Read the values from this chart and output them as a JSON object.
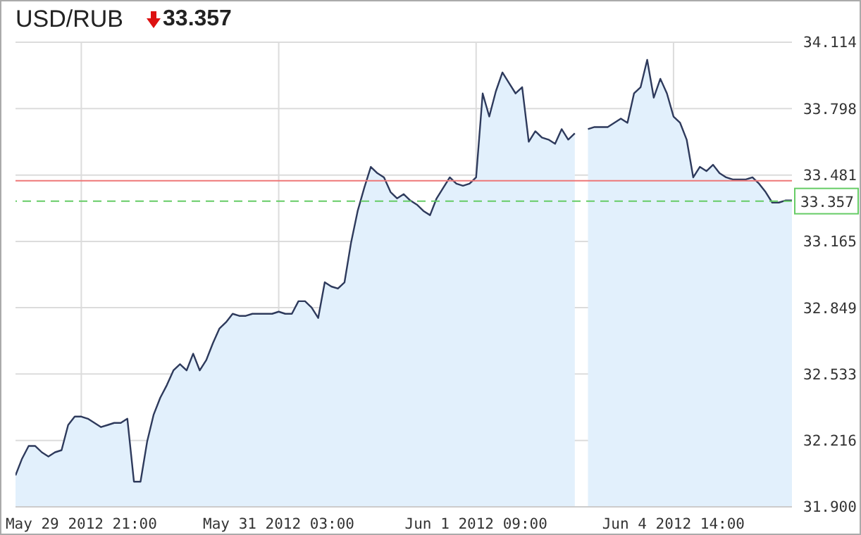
{
  "chart_data": {
    "type": "area",
    "title": "USD/RUB",
    "subtitle": "33.357",
    "categories": [
      null,
      null,
      null,
      null,
      null,
      null,
      null,
      null,
      null,
      null,
      "May 29 2012 21:00",
      null,
      null,
      null,
      null,
      null,
      null,
      null,
      null,
      null,
      null,
      null,
      null,
      null,
      null,
      null,
      null,
      null,
      null,
      null,
      null,
      null,
      null,
      null,
      null,
      null,
      null,
      null,
      null,
      null,
      "May 31 2012 03:00",
      null,
      null,
      null,
      null,
      null,
      null,
      null,
      null,
      null,
      null,
      null,
      null,
      null,
      null,
      null,
      null,
      null,
      null,
      null,
      null,
      null,
      null,
      null,
      null,
      null,
      null,
      null,
      null,
      null,
      "Jun 1 2012 09:00",
      null,
      null,
      null,
      null,
      null,
      null,
      null,
      null,
      null,
      null,
      null,
      null,
      null,
      null,
      null,
      null,
      null,
      null,
      null,
      null,
      null,
      null,
      null,
      null,
      null,
      null,
      null,
      null,
      null,
      "Jun 4 2012 14:00",
      null,
      null,
      null,
      null,
      null,
      null,
      null,
      null,
      null,
      null,
      null,
      null,
      null,
      null,
      null,
      null,
      null,
      null
    ],
    "series": [
      {
        "color": "#2e3a5c",
        "values": [
          32.05,
          32.13,
          32.19,
          32.19,
          32.16,
          32.14,
          32.16,
          32.17,
          32.29,
          32.33,
          32.33,
          32.32,
          32.3,
          32.28,
          32.29,
          32.3,
          32.3,
          32.32,
          32.02,
          32.02,
          32.21,
          32.34,
          32.42,
          32.48,
          32.55,
          32.58,
          32.55,
          32.63,
          32.55,
          32.6,
          32.68,
          32.75,
          32.78,
          32.82,
          32.81,
          32.81,
          32.82,
          32.82,
          32.82,
          32.82,
          32.83,
          32.82,
          32.82,
          32.88,
          32.88,
          32.85,
          32.8,
          32.97,
          32.95,
          32.94,
          32.97,
          33.16,
          33.31,
          33.42,
          33.52,
          33.49,
          33.47,
          33.4,
          33.37,
          33.39,
          33.36,
          33.34,
          33.31,
          33.29,
          33.37,
          33.42,
          33.47,
          33.44,
          33.43,
          33.44,
          33.47,
          33.87,
          33.76,
          33.88,
          33.97,
          33.92,
          33.87,
          33.9,
          33.64,
          33.69,
          33.66,
          33.65,
          33.63,
          33.7,
          33.65,
          33.68,
          null,
          33.7,
          33.71,
          33.71,
          33.71,
          33.73,
          33.75,
          33.73,
          33.87,
          33.9,
          34.03,
          33.85,
          33.94,
          33.87,
          33.76,
          33.73,
          33.65,
          33.47,
          33.52,
          33.5,
          33.53,
          33.49,
          33.47,
          33.46,
          33.46,
          33.46,
          33.47,
          33.44,
          33.4,
          33.35,
          33.35,
          33.36,
          33.36
        ]
      }
    ],
    "ylim": [
      31.9,
      34.114
    ],
    "yticks": [
      {
        "value": 31.9,
        "label": "31.900"
      },
      32.216,
      32.533,
      32.849,
      33.165,
      33.481,
      33.798,
      34.114
    ],
    "ref_lines": [
      {
        "axis": "y",
        "value": 33.454,
        "color": "#ee7777",
        "line_style": "solid"
      },
      {
        "axis": "y",
        "value": 33.357,
        "label": "33.357",
        "color": "#66cc66",
        "line_style": "dashed"
      }
    ],
    "grid": true,
    "marker": "none"
  }
}
